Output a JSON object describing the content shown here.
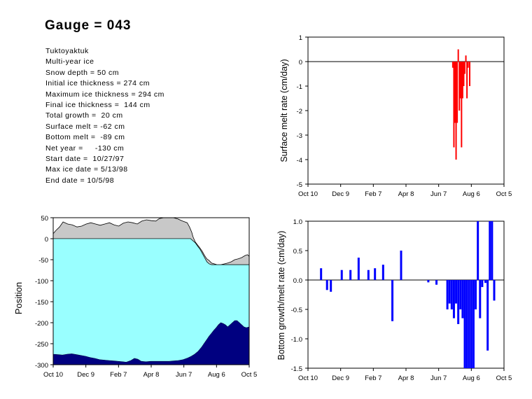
{
  "header": {
    "title": "Gauge = 043"
  },
  "info_lines": [
    "Tuktoyaktuk",
    "Multi-year ice",
    "Snow depth = 50 cm",
    "Initial ice thickness = 274 cm",
    "Maximum ice thickness = 294 cm",
    "Final ice thickness =  144 cm",
    "Total growth =  20 cm",
    "Surface melt = -62 cm",
    "Bottom melt =  -89 cm",
    "Net year =     -130 cm",
    "Start date =  10/27/97",
    "Max ice date = 5/13/98",
    "End date = 10/5/98"
  ],
  "colors": {
    "surface_bars": "#ff0000",
    "bottom_bars": "#0000ff",
    "snow": "#c8c8c8",
    "ice": "#99ffff",
    "bottom_fill": "#000080"
  },
  "chart_data": [
    {
      "id": "surface",
      "type": "bar",
      "title": "",
      "xlabel": "",
      "ylabel": "Surface melt rate (cm/day)",
      "xticks": [
        "Oct 10",
        "Dec 9",
        "Feb 7",
        "Apr 8",
        "Jun 7",
        "Aug 6",
        "Oct 5"
      ],
      "yticks": [
        "1",
        "0",
        "-1",
        "-2",
        "-3",
        "-4",
        "-5"
      ],
      "ylim": [
        -5,
        1
      ],
      "x_unit": "days since Oct 10",
      "xlim": [
        0,
        360
      ],
      "zero_line": true,
      "bars": [
        {
          "x": 266,
          "v": -0.25
        },
        {
          "x": 268,
          "v": -3.5
        },
        {
          "x": 270,
          "v": -2.5
        },
        {
          "x": 272,
          "v": -4.0
        },
        {
          "x": 274,
          "v": -2.5
        },
        {
          "x": 276,
          "v": 0.5
        },
        {
          "x": 278,
          "v": -2.0
        },
        {
          "x": 280,
          "v": -1.5
        },
        {
          "x": 282,
          "v": -3.5
        },
        {
          "x": 284,
          "v": -1.5
        },
        {
          "x": 286,
          "v": -1.0
        },
        {
          "x": 288,
          "v": -0.5
        },
        {
          "x": 290,
          "v": 0.25
        },
        {
          "x": 292,
          "v": -1.5
        },
        {
          "x": 294,
          "v": -0.25
        },
        {
          "x": 297,
          "v": -1.0
        }
      ]
    },
    {
      "id": "bottom",
      "type": "bar",
      "title": "",
      "xlabel": "",
      "ylabel": "Bottom growth/melt rate (cm/day)",
      "xticks": [
        "Oct 10",
        "Dec 9",
        "Feb 7",
        "Apr 8",
        "Jun 7",
        "Aug 6",
        "Oct 5"
      ],
      "yticks": [
        "1.0",
        "0.5",
        "0.0",
        "-0.5",
        "-1.0",
        "-1.5"
      ],
      "ylim": [
        -1.5,
        1.0
      ],
      "x_unit": "days since Oct 10",
      "xlim": [
        0,
        360
      ],
      "zero_line": true,
      "bars": [
        {
          "x": 24,
          "v": 0.2
        },
        {
          "x": 35,
          "v": -0.17
        },
        {
          "x": 42,
          "v": -0.2
        },
        {
          "x": 62,
          "v": 0.17
        },
        {
          "x": 78,
          "v": 0.17
        },
        {
          "x": 93,
          "v": 0.38
        },
        {
          "x": 111,
          "v": 0.17
        },
        {
          "x": 123,
          "v": 0.2
        },
        {
          "x": 138,
          "v": 0.26
        },
        {
          "x": 155,
          "v": -0.7
        },
        {
          "x": 171,
          "v": 0.5
        },
        {
          "x": 221,
          "v": -0.04
        },
        {
          "x": 236,
          "v": -0.08
        },
        {
          "x": 256,
          "v": -0.5
        },
        {
          "x": 260,
          "v": -0.4
        },
        {
          "x": 264,
          "v": -0.5
        },
        {
          "x": 268,
          "v": -0.65
        },
        {
          "x": 272,
          "v": -0.4
        },
        {
          "x": 276,
          "v": -0.75
        },
        {
          "x": 280,
          "v": -0.5
        },
        {
          "x": 284,
          "v": -0.65
        },
        {
          "x": 288,
          "v": -1.5
        },
        {
          "x": 292,
          "v": -1.5
        },
        {
          "x": 296,
          "v": -1.5
        },
        {
          "x": 300,
          "v": -1.5
        },
        {
          "x": 304,
          "v": -1.5
        },
        {
          "x": 308,
          "v": -0.5
        },
        {
          "x": 312,
          "v": 1.0
        },
        {
          "x": 316,
          "v": -0.65
        },
        {
          "x": 320,
          "v": -0.12
        },
        {
          "x": 326,
          "v": -0.05
        },
        {
          "x": 330,
          "v": -1.2
        },
        {
          "x": 334,
          "v": 1.0
        },
        {
          "x": 338,
          "v": 1.0
        },
        {
          "x": 342,
          "v": -0.35
        }
      ]
    },
    {
      "id": "position",
      "type": "area",
      "title": "",
      "xlabel": "",
      "ylabel": "Position",
      "xticks": [
        "Oct 10",
        "Dec 9",
        "Feb 7",
        "Apr 8",
        "Jun 7",
        "Aug 6",
        "Oct 5"
      ],
      "yticks": [
        "50",
        "0",
        "-50",
        "-100",
        "-150",
        "-200",
        "-250",
        "-300"
      ],
      "ylim": [
        -300,
        50
      ],
      "x_unit": "days since Oct 10",
      "xlim": [
        17,
        355
      ],
      "series": [
        {
          "name": "snow",
          "points": [
            [
              17,
              12
            ],
            [
              22,
              20
            ],
            [
              28,
              28
            ],
            [
              34,
              40
            ],
            [
              42,
              35
            ],
            [
              50,
              33
            ],
            [
              58,
              28
            ],
            [
              66,
              30
            ],
            [
              74,
              35
            ],
            [
              82,
              38
            ],
            [
              90,
              35
            ],
            [
              98,
              32
            ],
            [
              106,
              35
            ],
            [
              114,
              38
            ],
            [
              122,
              33
            ],
            [
              130,
              30
            ],
            [
              138,
              37
            ],
            [
              146,
              40
            ],
            [
              154,
              38
            ],
            [
              162,
              35
            ],
            [
              170,
              42
            ],
            [
              178,
              45
            ],
            [
              186,
              43
            ],
            [
              194,
              42
            ],
            [
              200,
              48
            ],
            [
              208,
              50
            ],
            [
              216,
              50
            ],
            [
              224,
              50
            ],
            [
              232,
              47
            ],
            [
              240,
              42
            ],
            [
              248,
              38
            ],
            [
              252,
              28
            ],
            [
              256,
              15
            ],
            [
              258,
              5
            ],
            [
              262,
              -8
            ],
            [
              266,
              -15
            ],
            [
              270,
              -22
            ],
            [
              274,
              -30
            ],
            [
              278,
              -40
            ],
            [
              282,
              -48
            ],
            [
              286,
              -52
            ],
            [
              290,
              -58
            ],
            [
              295,
              -60
            ],
            [
              300,
              -62
            ],
            [
              306,
              -62
            ],
            [
              312,
              -60
            ],
            [
              318,
              -58
            ],
            [
              324,
              -55
            ],
            [
              330,
              -50
            ],
            [
              336,
              -48
            ],
            [
              342,
              -45
            ],
            [
              348,
              -40
            ],
            [
              352,
              -38
            ],
            [
              355,
              -42
            ]
          ]
        },
        {
          "name": "surface",
          "points": [
            [
              17,
              0
            ],
            [
              254,
              0
            ],
            [
              258,
              -5
            ],
            [
              262,
              -10
            ],
            [
              266,
              -18
            ],
            [
              270,
              -25
            ],
            [
              274,
              -35
            ],
            [
              278,
              -45
            ],
            [
              282,
              -55
            ],
            [
              286,
              -60
            ],
            [
              290,
              -62
            ],
            [
              355,
              -62
            ]
          ]
        },
        {
          "name": "bottom",
          "points": [
            [
              17,
              -275
            ],
            [
              25,
              -276
            ],
            [
              33,
              -277
            ],
            [
              41,
              -275
            ],
            [
              49,
              -274
            ],
            [
              57,
              -276
            ],
            [
              65,
              -278
            ],
            [
              73,
              -280
            ],
            [
              81,
              -283
            ],
            [
              89,
              -285
            ],
            [
              97,
              -288
            ],
            [
              105,
              -289
            ],
            [
              113,
              -290
            ],
            [
              121,
              -291
            ],
            [
              129,
              -292
            ],
            [
              137,
              -293
            ],
            [
              143,
              -294
            ],
            [
              151,
              -290
            ],
            [
              157,
              -285
            ],
            [
              163,
              -287
            ],
            [
              169,
              -292
            ],
            [
              177,
              -293
            ],
            [
              185,
              -292
            ],
            [
              193,
              -292
            ],
            [
              201,
              -292
            ],
            [
              209,
              -292
            ],
            [
              217,
              -292
            ],
            [
              225,
              -291
            ],
            [
              233,
              -290
            ],
            [
              241,
              -288
            ],
            [
              249,
              -284
            ],
            [
              255,
              -280
            ],
            [
              261,
              -275
            ],
            [
              267,
              -268
            ],
            [
              273,
              -258
            ],
            [
              278,
              -248
            ],
            [
              282,
              -240
            ],
            [
              286,
              -232
            ],
            [
              290,
              -225
            ],
            [
              294,
              -218
            ],
            [
              298,
              -212
            ],
            [
              302,
              -205
            ],
            [
              306,
              -200
            ],
            [
              310,
              -202
            ],
            [
              314,
              -205
            ],
            [
              318,
              -210
            ],
            [
              322,
              -205
            ],
            [
              326,
              -200
            ],
            [
              330,
              -195
            ],
            [
              334,
              -195
            ],
            [
              338,
              -200
            ],
            [
              342,
              -205
            ],
            [
              346,
              -210
            ],
            [
              350,
              -212
            ],
            [
              355,
              -210
            ]
          ]
        }
      ]
    }
  ]
}
